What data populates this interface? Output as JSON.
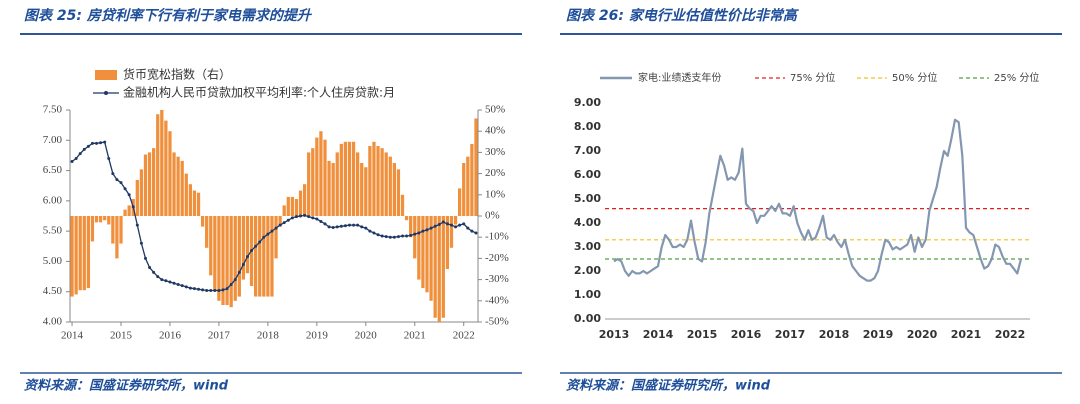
{
  "chart_data": [
    {
      "type": "combo",
      "title": "图表 25:  房贷利率下行有利于家电需求的提升",
      "source": "资料来源：国盛证券研究所，wind",
      "categories": [
        "2014",
        null,
        null,
        null,
        null,
        null,
        null,
        null,
        null,
        null,
        null,
        null,
        "2015",
        null,
        null,
        null,
        null,
        null,
        null,
        null,
        null,
        null,
        null,
        null,
        "2016",
        null,
        null,
        null,
        null,
        null,
        null,
        null,
        null,
        null,
        null,
        null,
        "2017",
        null,
        null,
        null,
        null,
        null,
        null,
        null,
        null,
        null,
        null,
        null,
        "2018",
        null,
        null,
        null,
        null,
        null,
        null,
        null,
        null,
        null,
        null,
        null,
        "2019",
        null,
        null,
        null,
        null,
        null,
        null,
        null,
        null,
        null,
        null,
        null,
        "2020",
        null,
        null,
        null,
        null,
        null,
        null,
        null,
        null,
        null,
        null,
        null,
        "2021",
        null,
        null,
        null,
        null,
        null,
        null,
        null,
        null,
        null,
        null,
        null,
        "2022",
        null,
        null,
        null
      ],
      "ylim": [
        4,
        7.5
      ],
      "yticks": [
        {
          "value": 4,
          "label": "4.00"
        },
        {
          "value": 4.5,
          "label": "4.50"
        },
        {
          "value": 5,
          "label": "5.00"
        },
        {
          "value": 5.5,
          "label": "5.50"
        },
        {
          "value": 6,
          "label": "6.00"
        },
        {
          "value": 6.5,
          "label": "6.50"
        },
        {
          "value": 7,
          "label": "7.00"
        },
        {
          "value": 7.5,
          "label": "7.50"
        }
      ],
      "y2lim": [
        -50,
        50
      ],
      "y2ticks": [
        {
          "value": -50,
          "label": "-50%"
        },
        {
          "value": -40,
          "label": "-40%"
        },
        {
          "value": -30,
          "label": "-30%"
        },
        {
          "value": -20,
          "label": "-20%"
        },
        {
          "value": -10,
          "label": "-10%"
        },
        {
          "value": 0,
          "label": "0%"
        },
        {
          "value": 10,
          "label": "10%"
        },
        {
          "value": 20,
          "label": "20%"
        },
        {
          "value": 30,
          "label": "30%"
        },
        {
          "value": 40,
          "label": "40%"
        },
        {
          "value": 50,
          "label": "50%"
        }
      ],
      "series": [
        {
          "name": "货币宽松指数（右）",
          "type": "bar",
          "axis": "y2",
          "color": "#f0903c",
          "values": [
            -38,
            -37,
            -35,
            -35,
            -34,
            -12,
            -3,
            -3,
            -2,
            -4,
            -13,
            -20,
            -13,
            3,
            5,
            8,
            17,
            22,
            29,
            30,
            32,
            48,
            50,
            45,
            40,
            30,
            28,
            26,
            20,
            15,
            12,
            11,
            -5,
            -15,
            -28,
            -35,
            -40,
            -42,
            -42,
            -43,
            -40,
            -38,
            -30,
            -27,
            -33,
            -38,
            -38,
            -38,
            -38,
            -38,
            -20,
            -5,
            5,
            9,
            9,
            8,
            12,
            15,
            30,
            32,
            37,
            40,
            36,
            26,
            25,
            30,
            34,
            35,
            35,
            35,
            30,
            25,
            23,
            33,
            35,
            33,
            32,
            30,
            28,
            25,
            22,
            10,
            -2,
            -10,
            -20,
            -30,
            -34,
            -36,
            -40,
            -48,
            -50,
            -48,
            -25,
            -15,
            -4,
            13,
            25,
            28,
            34,
            46
          ]
        },
        {
          "name": "金融机构人民币贷款加权平均利率:个人住房贷款:月",
          "type": "line",
          "color": "#1f3864",
          "values": [
            6.65,
            6.7,
            6.78,
            6.85,
            6.9,
            6.95,
            6.95,
            6.96,
            6.97,
            6.7,
            6.45,
            6.35,
            6.3,
            6.2,
            6.1,
            5.9,
            5.6,
            5.3,
            5.05,
            4.9,
            4.82,
            4.75,
            4.7,
            4.68,
            4.66,
            4.64,
            4.62,
            4.6,
            4.58,
            4.56,
            4.55,
            4.54,
            4.53,
            4.52,
            4.52,
            4.52,
            4.52,
            4.53,
            4.55,
            4.62,
            4.7,
            4.82,
            4.95,
            5.08,
            5.18,
            5.25,
            5.32,
            5.4,
            5.45,
            5.5,
            5.55,
            5.6,
            5.64,
            5.68,
            5.72,
            5.74,
            5.75,
            5.76,
            5.74,
            5.72,
            5.7,
            5.66,
            5.62,
            5.57,
            5.56,
            5.57,
            5.58,
            5.59,
            5.6,
            5.6,
            5.6,
            5.57,
            5.55,
            5.5,
            5.47,
            5.44,
            5.42,
            5.41,
            5.4,
            5.4,
            5.41,
            5.42,
            5.42,
            5.43,
            5.45,
            5.47,
            5.5,
            5.52,
            5.55,
            5.58,
            5.61,
            5.65,
            5.62,
            5.6,
            5.57,
            5.6,
            5.62,
            5.55,
            5.5,
            5.47
          ]
        }
      ]
    },
    {
      "type": "line",
      "title": "图表 26:  家电行业估值性价比非常高",
      "source": "资料来源：国盛证券研究所，wind",
      "categories": [
        "2013",
        null,
        null,
        null,
        null,
        null,
        null,
        null,
        null,
        null,
        null,
        null,
        "2014",
        null,
        null,
        null,
        null,
        null,
        null,
        null,
        null,
        null,
        null,
        null,
        "2015",
        null,
        null,
        null,
        null,
        null,
        null,
        null,
        null,
        null,
        null,
        null,
        "2016",
        null,
        null,
        null,
        null,
        null,
        null,
        null,
        null,
        null,
        null,
        null,
        "2017",
        null,
        null,
        null,
        null,
        null,
        null,
        null,
        null,
        null,
        null,
        null,
        "2018",
        null,
        null,
        null,
        null,
        null,
        null,
        null,
        null,
        null,
        null,
        null,
        "2019",
        null,
        null,
        null,
        null,
        null,
        null,
        null,
        null,
        null,
        null,
        null,
        "2020",
        null,
        null,
        null,
        null,
        null,
        null,
        null,
        null,
        null,
        null,
        null,
        "2021",
        null,
        null,
        null,
        null,
        null,
        null,
        null,
        null,
        null,
        null,
        null,
        "2022",
        null,
        null,
        null
      ],
      "ylim": [
        0,
        9
      ],
      "yticks": [
        {
          "value": 0,
          "label": "0.00"
        },
        {
          "value": 1,
          "label": "1.00"
        },
        {
          "value": 2,
          "label": "2.00"
        },
        {
          "value": 3,
          "label": "3.00"
        },
        {
          "value": 4,
          "label": "4.00"
        },
        {
          "value": 5,
          "label": "5.00"
        },
        {
          "value": 6,
          "label": "6.00"
        },
        {
          "value": 7,
          "label": "7.00"
        },
        {
          "value": 8,
          "label": "8.00"
        },
        {
          "value": 9,
          "label": "9.00"
        }
      ],
      "series": [
        {
          "name": "家电:业绩透支年份",
          "color": "#8497b0",
          "values": [
            2.4,
            2.5,
            2.4,
            2.0,
            1.8,
            2.0,
            1.9,
            1.9,
            2.0,
            1.9,
            2.0,
            2.1,
            2.2,
            3.0,
            3.5,
            3.3,
            3.0,
            3.0,
            3.1,
            3.0,
            3.3,
            4.1,
            3.2,
            2.5,
            2.4,
            3.2,
            4.4,
            5.2,
            6.0,
            6.8,
            6.4,
            5.8,
            5.9,
            5.8,
            6.1,
            7.1,
            4.8,
            4.6,
            4.5,
            4.0,
            4.3,
            4.3,
            4.5,
            4.7,
            4.5,
            4.8,
            4.4,
            4.4,
            4.3,
            4.7,
            4.0,
            3.6,
            3.3,
            3.7,
            3.3,
            3.4,
            3.8,
            4.3,
            3.4,
            3.3,
            3.5,
            3.2,
            3.0,
            3.3,
            2.7,
            2.2,
            2.0,
            1.8,
            1.7,
            1.6,
            1.6,
            1.7,
            2.0,
            2.7,
            3.3,
            3.2,
            2.9,
            3.0,
            2.9,
            3.0,
            3.1,
            3.5,
            2.8,
            3.4,
            3.0,
            3.3,
            4.5,
            5.0,
            5.5,
            6.3,
            7.0,
            6.8,
            7.5,
            8.3,
            8.2,
            6.8,
            3.8,
            3.6,
            3.5,
            3.0,
            2.5,
            2.1,
            2.2,
            2.5,
            3.1,
            3.0,
            2.6,
            2.3,
            2.3,
            2.1,
            1.9,
            2.5
          ]
        }
      ],
      "reference_lines": [
        {
          "name": "75% 分位",
          "value": 4.6,
          "color": "#e02020"
        },
        {
          "name": "50% 分位",
          "value": 3.3,
          "color": "#f0c020"
        },
        {
          "name": "25% 分位",
          "value": 2.5,
          "color": "#50a040"
        }
      ]
    }
  ]
}
